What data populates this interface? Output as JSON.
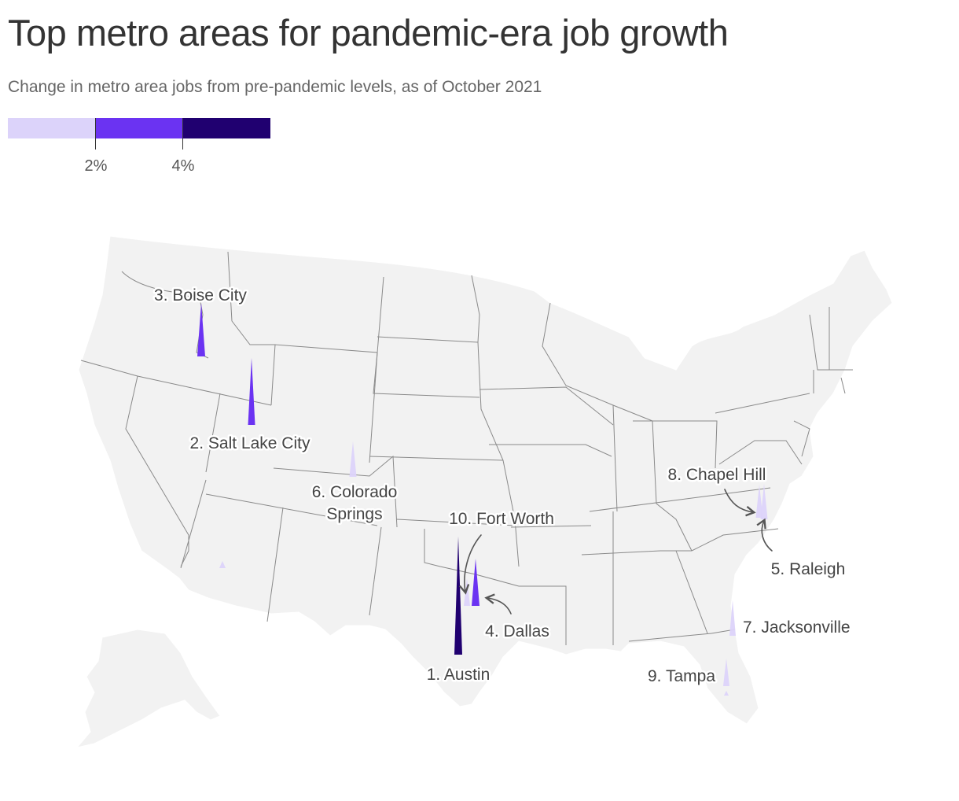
{
  "title": "Top metro areas for pandemic-era job growth",
  "subtitle": "Change in metro area jobs from pre-pandemic levels, as of October 2021",
  "legend": {
    "colors": [
      "#dcd3fa",
      "#6b33f2",
      "#200070"
    ],
    "ticks": [
      "2%",
      "4%"
    ]
  },
  "colors": {
    "land": "#f2f2f2",
    "border": "#8a8a8a",
    "label": "#444444",
    "arrow": "#555555"
  },
  "metros": [
    {
      "rank": 1,
      "label": "1. Austin",
      "level": "4%+"
    },
    {
      "rank": 2,
      "label": "2. Salt Lake City",
      "level": "2–4%"
    },
    {
      "rank": 3,
      "label": "3. Boise City",
      "level": "2–4%"
    },
    {
      "rank": 4,
      "label": "4. Dallas",
      "level": "2–4%"
    },
    {
      "rank": 5,
      "label": "5. Raleigh",
      "level": "under 2%"
    },
    {
      "rank": 6,
      "label": "6. Colorado",
      "label2": "Springs",
      "level": "under 2%"
    },
    {
      "rank": 7,
      "label": "7. Jacksonville",
      "level": "under 2%"
    },
    {
      "rank": 8,
      "label": "8. Chapel Hill",
      "level": "under 2%"
    },
    {
      "rank": 9,
      "label": "9. Tampa",
      "level": "under 2%"
    },
    {
      "rank": 10,
      "label": "10. Fort Worth",
      "level": "under 2%"
    }
  ]
}
